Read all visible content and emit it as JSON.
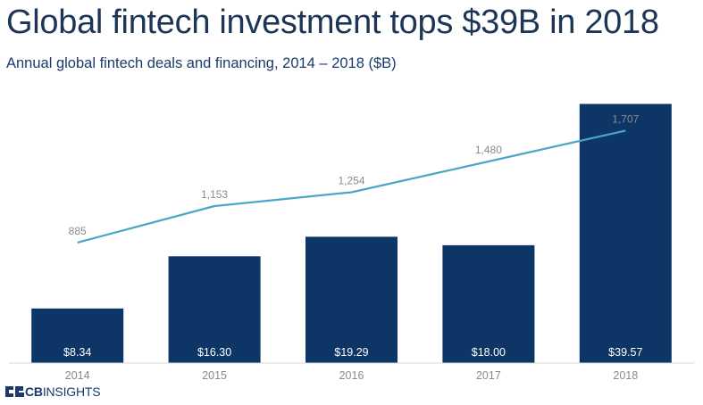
{
  "header": {
    "title": "Global fintech investment tops $39B in 2018",
    "subtitle": "Annual global fintech deals and financing, 2014 – 2018 ($B)"
  },
  "colors": {
    "bar": "#0d3566",
    "line": "#49a6c9",
    "bar_label": "#ffffff",
    "line_label": "#8a8a8a",
    "axis_label": "#8a8a8a"
  },
  "chart_data": {
    "type": "bar",
    "title": "Global fintech investment tops $39B in 2018",
    "subtitle": "Annual global fintech deals and financing, 2014 – 2018 ($B)",
    "categories": [
      "2014",
      "2015",
      "2016",
      "2017",
      "2018"
    ],
    "series": [
      {
        "name": "Financing ($B)",
        "type": "bar",
        "values": [
          8.34,
          16.3,
          19.29,
          18.0,
          39.57
        ],
        "labels": [
          "$8.34",
          "$16.30",
          "$19.29",
          "$18.00",
          "$39.57"
        ]
      },
      {
        "name": "Deals",
        "type": "line",
        "values": [
          885,
          1153,
          1254,
          1480,
          1707
        ],
        "labels": [
          "885",
          "1,153",
          "1,254",
          "1,480",
          "1,707"
        ]
      }
    ],
    "ylim_bars": [
      0,
      41
    ],
    "ylim_line": [
      0,
      2050
    ],
    "grid": false,
    "legend": "none"
  },
  "footer": {
    "logo_bold": "CB",
    "logo_rest": "INSIGHTS"
  }
}
